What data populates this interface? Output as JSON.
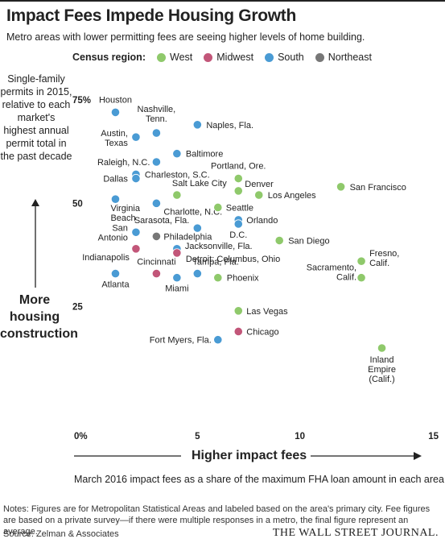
{
  "header": {
    "title": "Impact Fees Impede Housing Growth",
    "subtitle": "Metro areas with lower permitting fees are seeing higher levels of home building."
  },
  "legend": {
    "title": "Census region:",
    "items": [
      {
        "label": "West",
        "color": "#8fc96b"
      },
      {
        "label": "Midwest",
        "color": "#c25679"
      },
      {
        "label": "South",
        "color": "#4a9bd4"
      },
      {
        "label": "Northeast",
        "color": "#777777"
      }
    ]
  },
  "axes": {
    "y_label": "Single-family permits in 2015, relative to each market's highest annual permit total in the past decade",
    "y_arrow_label": "More housing construction",
    "x_arrow_label": "Higher impact fees",
    "x_sub_label": "March 2016 impact fees as a share of the maximum FHA loan amount in each area"
  },
  "footer": {
    "notes": "Notes: Figures are for Metropolitan Statistical Areas and labeled based on the area's primary city. Fee figures are based on a private survey—if there were multiple responses in a metro, the final figure represent an average.",
    "source": "Source: Zelman & Associates",
    "publisher": "THE WALL STREET JOURNAL."
  },
  "chart_data": {
    "type": "scatter",
    "title": "Impact Fees Impede Housing Growth",
    "xlabel": "Higher impact fees",
    "ylabel": "More housing construction",
    "xlim": [
      0,
      15
    ],
    "ylim": [
      0,
      75
    ],
    "x_ticks": [
      {
        "value": 0,
        "label": "0%"
      },
      {
        "value": 5,
        "label": "5"
      },
      {
        "value": 10,
        "label": "10"
      },
      {
        "value": 15,
        "label": "15"
      }
    ],
    "y_ticks": [
      {
        "value": 75,
        "label": "75%"
      },
      {
        "value": 50,
        "label": "50"
      },
      {
        "value": 25,
        "label": "25"
      }
    ],
    "grid": false,
    "legend_position": "top",
    "points": [
      {
        "label": "Houston",
        "x": 1,
        "y": 72,
        "region": "South"
      },
      {
        "label": "Nashville, Tenn.",
        "x": 3,
        "y": 67,
        "region": "South"
      },
      {
        "label": "Naples, Fla.",
        "x": 5,
        "y": 69,
        "region": "South"
      },
      {
        "label": "Austin, Texas",
        "x": 2,
        "y": 66,
        "region": "South"
      },
      {
        "label": "Baltimore",
        "x": 4,
        "y": 62,
        "region": "South"
      },
      {
        "label": "Raleigh, N.C.",
        "x": 3,
        "y": 60,
        "region": "South"
      },
      {
        "label": "Charleston, S.C.",
        "x": 2,
        "y": 57,
        "region": "South"
      },
      {
        "label": "Dallas",
        "x": 2,
        "y": 56,
        "region": "South"
      },
      {
        "label": "Portland, Ore.",
        "x": 7,
        "y": 56,
        "region": "West"
      },
      {
        "label": "Denver",
        "x": 7,
        "y": 53,
        "region": "West"
      },
      {
        "label": "Salt Lake City",
        "x": 4,
        "y": 52,
        "region": "West"
      },
      {
        "label": "Los Angeles",
        "x": 8,
        "y": 52,
        "region": "West"
      },
      {
        "label": "San Francisco",
        "x": 12,
        "y": 54,
        "region": "West"
      },
      {
        "label": "Virginia Beach",
        "x": 1,
        "y": 51,
        "region": "South"
      },
      {
        "label": "Charlotte, N.C.",
        "x": 3,
        "y": 50,
        "region": "South"
      },
      {
        "label": "Seattle",
        "x": 6,
        "y": 49,
        "region": "West"
      },
      {
        "label": "Orlando",
        "x": 7,
        "y": 46,
        "region": "South"
      },
      {
        "label": "Sarasota, Fla.",
        "x": 5,
        "y": 44,
        "region": "South"
      },
      {
        "label": "D.C.",
        "x": 7,
        "y": 45,
        "region": "South"
      },
      {
        "label": "San Antonio",
        "x": 2,
        "y": 43,
        "region": "South"
      },
      {
        "label": "Philadelphia",
        "x": 3,
        "y": 42,
        "region": "Northeast"
      },
      {
        "label": "San Diego",
        "x": 9,
        "y": 41,
        "region": "West"
      },
      {
        "label": "Jacksonville, Fla.",
        "x": 4,
        "y": 39,
        "region": "South"
      },
      {
        "label": "Indianapolis",
        "x": 2,
        "y": 39,
        "region": "Midwest"
      },
      {
        "label": "Detroit; Columbus, Ohio",
        "x": 4,
        "y": 38,
        "region": "Midwest"
      },
      {
        "label": "Fresno, Calif.",
        "x": 13,
        "y": 36,
        "region": "West"
      },
      {
        "label": "Cincinnati",
        "x": 3,
        "y": 33,
        "region": "Midwest"
      },
      {
        "label": "Tampa, Fla.",
        "x": 5,
        "y": 33,
        "region": "South"
      },
      {
        "label": "Atlanta",
        "x": 1,
        "y": 33,
        "region": "South"
      },
      {
        "label": "Miami",
        "x": 4,
        "y": 32,
        "region": "South"
      },
      {
        "label": "Phoenix",
        "x": 6,
        "y": 32,
        "region": "West"
      },
      {
        "label": "Sacramento, Calif.",
        "x": 13,
        "y": 32,
        "region": "West"
      },
      {
        "label": "Las Vegas",
        "x": 7,
        "y": 24,
        "region": "West"
      },
      {
        "label": "Chicago",
        "x": 7,
        "y": 19,
        "region": "Midwest"
      },
      {
        "label": "Fort Myers, Fla.",
        "x": 6,
        "y": 17,
        "region": "South"
      },
      {
        "label": "Inland Empire (Calif.)",
        "x": 14,
        "y": 15,
        "region": "West"
      }
    ]
  }
}
